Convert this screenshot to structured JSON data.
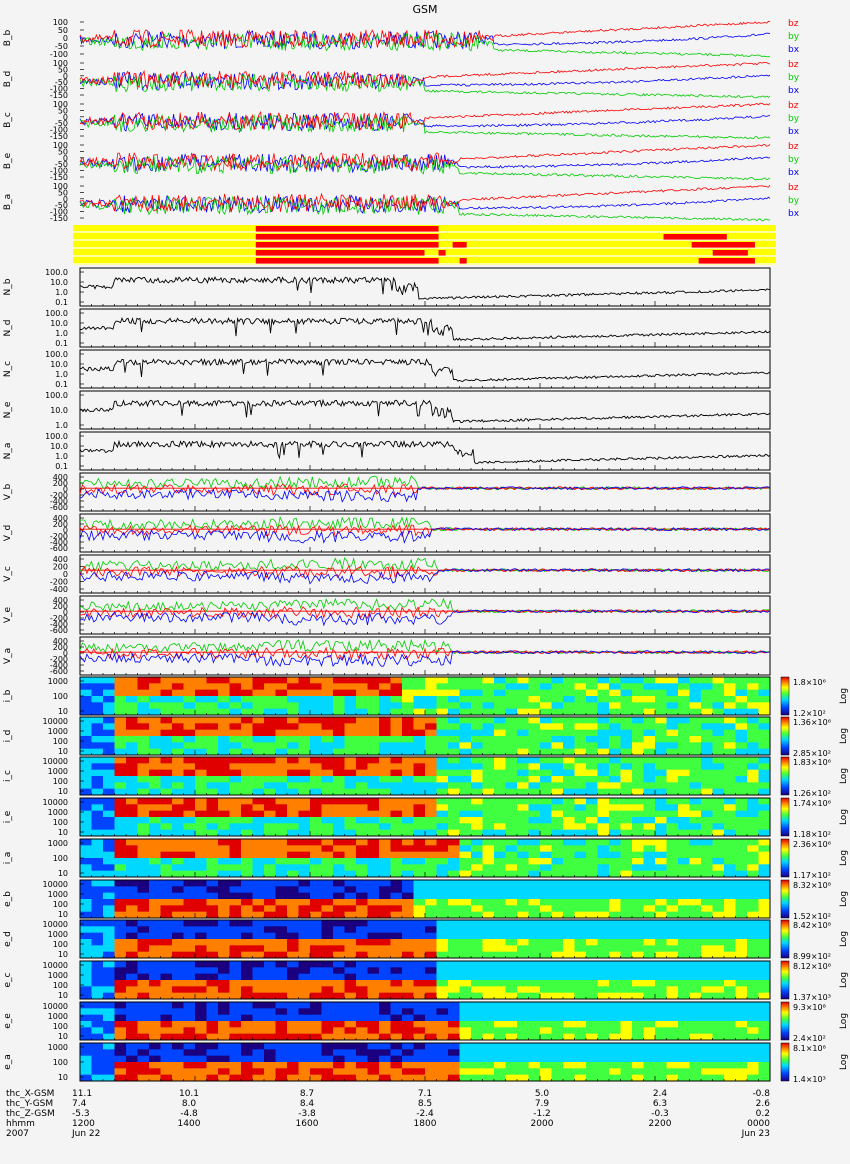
{
  "title": "GSM",
  "colors": {
    "bx": "#0000ff",
    "by": "#00cc00",
    "bz": "#ff0000",
    "trace": "#000000",
    "flag_on": "#ff0000",
    "flag_off": "#ffff00"
  },
  "chart_data": [
    {
      "type": "line",
      "group": "magnetic field",
      "panels": [
        {
          "ylabel": "B_b",
          "yticks": [
            "100",
            "50",
            "0",
            "-50",
            "-100"
          ],
          "legend": [
            "bz",
            "by",
            "bx"
          ]
        },
        {
          "ylabel": "B_d",
          "yticks": [
            "100",
            "50",
            "0",
            "-50",
            "-100",
            "-150"
          ],
          "legend": [
            "bz",
            "by",
            "bx"
          ]
        },
        {
          "ylabel": "B_c",
          "yticks": [
            "100",
            "50",
            "0",
            "-50",
            "-100",
            "-150"
          ],
          "legend": [
            "bz",
            "by",
            "bx"
          ]
        },
        {
          "ylabel": "B_e",
          "yticks": [
            "100",
            "50",
            "0",
            "-50",
            "-100",
            "-150"
          ],
          "legend": [
            "bz",
            "by",
            "bx"
          ]
        },
        {
          "ylabel": "B_a",
          "yticks": [
            "100",
            "50",
            "0",
            "-50",
            "-100",
            "-150"
          ],
          "legend": [
            "bz",
            "by",
            "bx"
          ]
        }
      ]
    },
    {
      "type": "heatmap",
      "group": "flag bars",
      "rows": 5,
      "segments_fraction": [
        [
          [
            0.26,
            0.52
          ]
        ],
        [
          [
            0.26,
            0.52
          ],
          [
            0.84,
            0.93
          ]
        ],
        [
          [
            0.26,
            0.52
          ],
          [
            0.54,
            0.56
          ],
          [
            0.88,
            0.97
          ]
        ],
        [
          [
            0.26,
            0.5
          ],
          [
            0.52,
            0.53
          ],
          [
            0.91,
            0.96
          ]
        ],
        [
          [
            0.26,
            0.52
          ],
          [
            0.55,
            0.56
          ],
          [
            0.89,
            0.97
          ]
        ]
      ]
    },
    {
      "type": "line",
      "group": "density",
      "yscale": "log",
      "panels": [
        {
          "ylabel": "N_b",
          "yticks": [
            "100.0",
            "10.0",
            "1.0",
            "0.1"
          ]
        },
        {
          "ylabel": "N_d",
          "yticks": [
            "100.0",
            "10.0",
            "1.0",
            "0.1"
          ]
        },
        {
          "ylabel": "N_c",
          "yticks": [
            "100.0",
            "10.0",
            "1.0",
            "0.1"
          ]
        },
        {
          "ylabel": "N_e",
          "yticks": [
            "100.0",
            "10.0",
            "1.0"
          ]
        },
        {
          "ylabel": "N_a",
          "yticks": [
            "100.0",
            "10.0",
            "1.0",
            "0.1"
          ]
        }
      ]
    },
    {
      "type": "line",
      "group": "velocity",
      "panels": [
        {
          "ylabel": "V_b",
          "yticks": [
            "400",
            "200",
            "0",
            "-200",
            "-400",
            "-600"
          ]
        },
        {
          "ylabel": "V_d",
          "yticks": [
            "400",
            "200",
            "0",
            "-200",
            "-400",
            "-600"
          ]
        },
        {
          "ylabel": "V_c",
          "yticks": [
            "400",
            "200",
            "0",
            "-200",
            "-400"
          ]
        },
        {
          "ylabel": "V_e",
          "yticks": [
            "400",
            "200",
            "0",
            "-200",
            "-400",
            "-600"
          ]
        },
        {
          "ylabel": "V_a",
          "yticks": [
            "400",
            "200",
            "0",
            "-200",
            "-400",
            "-600"
          ]
        }
      ]
    },
    {
      "type": "heatmap",
      "group": "spectrograms",
      "yscale": "log",
      "colorbar_label": "Log",
      "panels": [
        {
          "ylabel": "i_b",
          "yticks": [
            "1000",
            "100",
            "10"
          ],
          "cb_max": "1.8×10⁶",
          "cb_min": "1.2×10²"
        },
        {
          "ylabel": "i_d",
          "yticks": [
            "10000",
            "1000",
            "100",
            "10"
          ],
          "cb_max": "1.36×10⁶",
          "cb_min": "2.85×10²"
        },
        {
          "ylabel": "i_c",
          "yticks": [
            "10000",
            "1000",
            "100",
            "10"
          ],
          "cb_max": "1.83×10⁶",
          "cb_min": "1.26×10²"
        },
        {
          "ylabel": "i_e",
          "yticks": [
            "10000",
            "1000",
            "100",
            "10"
          ],
          "cb_max": "1.74×10⁶",
          "cb_min": "1.18×10²"
        },
        {
          "ylabel": "i_a",
          "yticks": [
            "1000",
            "100",
            "10"
          ],
          "cb_max": "2.36×10⁶",
          "cb_min": "1.17×10²"
        },
        {
          "ylabel": "e_b",
          "yticks": [
            "10000",
            "1000",
            "100",
            "10"
          ],
          "cb_max": "8.32×10⁸",
          "cb_min": "1.52×10²"
        },
        {
          "ylabel": "e_d",
          "yticks": [
            "10000",
            "1000",
            "100",
            "10"
          ],
          "cb_max": "8.42×10⁸",
          "cb_min": "8.99×10²"
        },
        {
          "ylabel": "e_c",
          "yticks": [
            "10000",
            "1000",
            "100",
            "10"
          ],
          "cb_max": "8.12×10⁸",
          "cb_min": "1.37×10³"
        },
        {
          "ylabel": "e_e",
          "yticks": [
            "10000",
            "1000",
            "100",
            "10"
          ],
          "cb_max": "9.3×10⁸",
          "cb_min": "2.4×10²"
        },
        {
          "ylabel": "e_a",
          "yticks": [
            "1000",
            "100",
            "10"
          ],
          "cb_max": "8.1×10⁸",
          "cb_min": "1.4×10³"
        }
      ]
    }
  ],
  "time_axis": {
    "rows": [
      {
        "label": "thc_X-GSM",
        "values": [
          "11.1",
          "10.1",
          "8.7",
          "7.1",
          "5.0",
          "2.4",
          "-0.8"
        ]
      },
      {
        "label": "thc_Y-GSM",
        "values": [
          "7.4",
          "8.0",
          "8.4",
          "8.5",
          "7.9",
          "6.3",
          "2.6"
        ]
      },
      {
        "label": "thc_Z-GSM",
        "values": [
          "-5.3",
          "-4.8",
          "-3.8",
          "-2.4",
          "-1.2",
          "-0.3",
          "0.2"
        ]
      },
      {
        "label": "hhmm",
        "values": [
          "1200",
          "1400",
          "1600",
          "1800",
          "2000",
          "2200",
          "0000"
        ]
      }
    ],
    "date_row": {
      "left_label": "2007",
      "start_date": "Jun 22",
      "end_date": "Jun 23"
    }
  }
}
